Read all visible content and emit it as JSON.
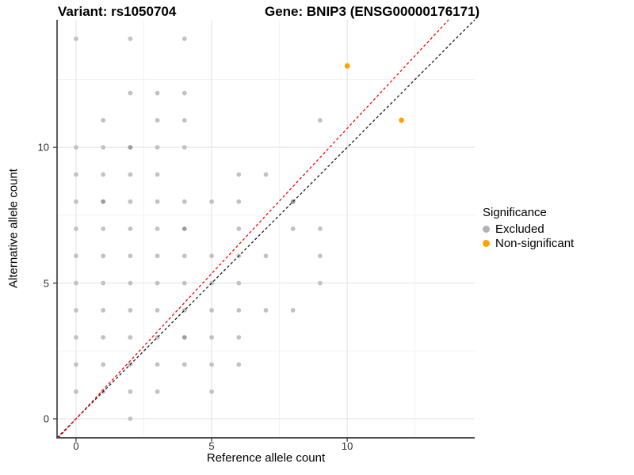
{
  "titles": {
    "variant": "Variant: rs1050704",
    "gene": "Gene: BNIP3 (ENSG00000176171)"
  },
  "legend": {
    "title": "Significance",
    "items": [
      {
        "label": "Excluded",
        "color": "#b3b3b3"
      },
      {
        "label": "Non-significant",
        "color": "#ffa500"
      }
    ]
  },
  "colors": {
    "excluded_point": "#c2c2c2",
    "excluded_overlap_point": "#9d9d9d",
    "non_significant_point": "#ffa500",
    "identity_line": "#1c1c1c",
    "fit_line": "#ff0000",
    "grid_major": "#e6e6e6",
    "grid_minor": "#f1f1f1",
    "axis_left": "#1a1a1a",
    "axis_bottom": "#4d4d4d",
    "tick_mark": "#333333"
  },
  "chart_data": {
    "type": "scatter",
    "title": "Variant: rs1050704 — Gene: BNIP3 (ENSG00000176171)",
    "xlabel": "Reference allele count",
    "ylabel": "Alternative allele count",
    "xlim": [
      -0.7,
      14.7
    ],
    "ylim": [
      -0.7,
      14.7
    ],
    "x_ticks": [
      0,
      5,
      10
    ],
    "y_ticks": [
      0,
      5,
      10
    ],
    "x_minor_ticks": [
      2.5,
      7.5,
      12.5
    ],
    "y_minor_ticks": [
      2.5,
      7.5,
      12.5
    ],
    "grid": true,
    "legend_title": "Significance",
    "legend_position": "right",
    "series": [
      {
        "name": "Excluded",
        "color": "#c2c2c2",
        "overlap_color": "#9d9d9d",
        "points": [
          [
            0,
            14
          ],
          [
            2,
            14
          ],
          [
            4,
            14
          ],
          [
            2,
            12
          ],
          [
            3,
            12
          ],
          [
            4,
            12
          ],
          [
            1,
            11
          ],
          [
            3,
            11
          ],
          [
            4,
            11
          ],
          [
            9,
            11
          ],
          [
            0,
            10
          ],
          [
            1,
            10
          ],
          [
            2,
            10
          ],
          [
            3,
            10
          ],
          [
            4,
            10
          ],
          [
            0,
            9
          ],
          [
            1,
            9
          ],
          [
            2,
            9
          ],
          [
            3,
            9
          ],
          [
            6,
            9
          ],
          [
            7,
            9
          ],
          [
            0,
            8
          ],
          [
            1,
            8
          ],
          [
            2,
            8
          ],
          [
            3,
            8
          ],
          [
            4,
            8
          ],
          [
            5,
            8
          ],
          [
            6,
            8
          ],
          [
            8,
            8
          ],
          [
            0,
            7
          ],
          [
            1,
            7
          ],
          [
            2,
            7
          ],
          [
            3,
            7
          ],
          [
            4,
            7
          ],
          [
            6,
            7
          ],
          [
            8,
            7
          ],
          [
            9,
            7
          ],
          [
            0,
            6
          ],
          [
            1,
            6
          ],
          [
            2,
            6
          ],
          [
            3,
            6
          ],
          [
            4,
            6
          ],
          [
            5,
            6
          ],
          [
            6,
            6
          ],
          [
            7,
            6
          ],
          [
            9,
            6
          ],
          [
            0,
            5
          ],
          [
            1,
            5
          ],
          [
            2,
            5
          ],
          [
            3,
            5
          ],
          [
            4,
            5
          ],
          [
            5,
            5
          ],
          [
            6,
            5
          ],
          [
            9,
            5
          ],
          [
            0,
            4
          ],
          [
            1,
            4
          ],
          [
            2,
            4
          ],
          [
            3,
            4
          ],
          [
            4,
            4
          ],
          [
            5,
            4
          ],
          [
            6,
            4
          ],
          [
            7,
            4
          ],
          [
            8,
            4
          ],
          [
            0,
            3
          ],
          [
            1,
            3
          ],
          [
            2,
            3
          ],
          [
            3,
            3
          ],
          [
            4,
            3
          ],
          [
            5,
            3
          ],
          [
            6,
            3
          ],
          [
            0,
            2
          ],
          [
            1,
            2
          ],
          [
            2,
            2
          ],
          [
            3,
            2
          ],
          [
            4,
            2
          ],
          [
            5,
            2
          ],
          [
            6,
            2
          ],
          [
            0,
            1
          ],
          [
            1,
            1
          ],
          [
            2,
            1
          ],
          [
            3,
            1
          ],
          [
            5,
            1
          ],
          [
            2,
            0
          ]
        ],
        "overlap_points": [
          [
            2,
            10
          ],
          [
            1,
            8
          ],
          [
            4,
            7
          ],
          [
            8,
            8
          ],
          [
            4,
            3
          ]
        ]
      },
      {
        "name": "Non-significant",
        "color": "#ffa500",
        "points": [
          [
            10,
            13
          ],
          [
            12,
            11
          ]
        ]
      }
    ],
    "lines": [
      {
        "name": "identity-line",
        "style": "dashed",
        "color": "#1c1c1c",
        "slope": 1.0,
        "intercept": 0
      },
      {
        "name": "fit-line",
        "style": "dashed",
        "color": "#ff0000",
        "slope": 1.07,
        "intercept": 0
      }
    ]
  }
}
